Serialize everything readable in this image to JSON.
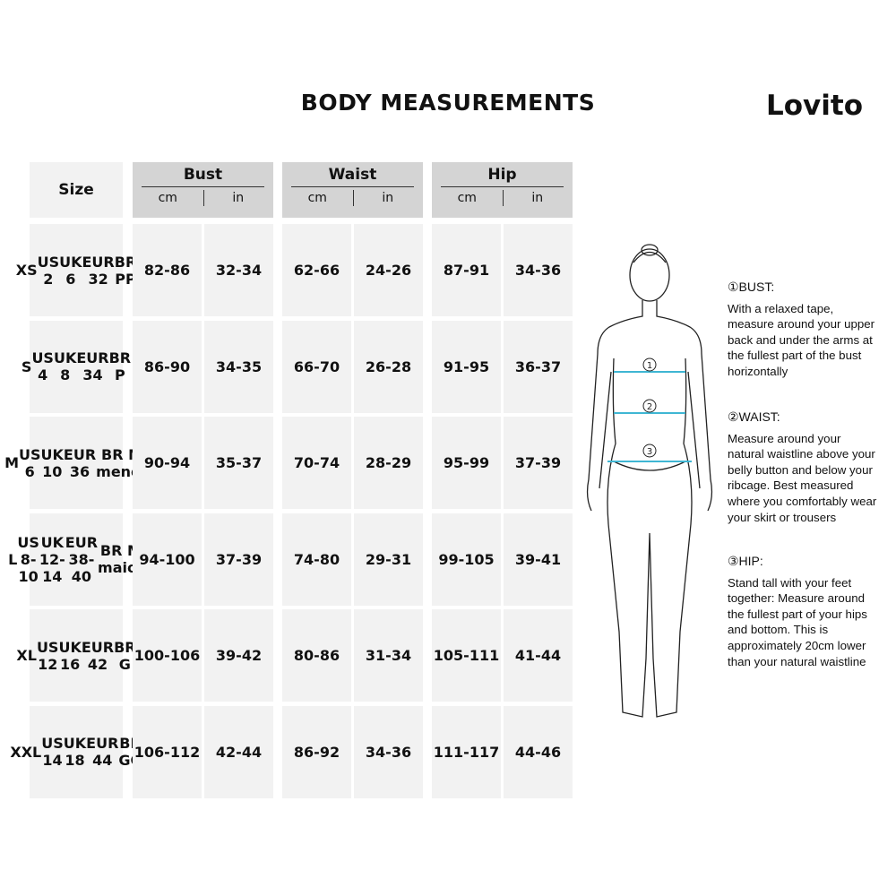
{
  "title": "BODY MEASUREMENTS",
  "brand": "Lovito",
  "header": {
    "size": "Size",
    "groups": [
      {
        "name": "Bust",
        "units": [
          "cm",
          "in"
        ]
      },
      {
        "name": "Waist",
        "units": [
          "cm",
          "in"
        ]
      },
      {
        "name": "Hip",
        "units": [
          "cm",
          "in"
        ]
      }
    ]
  },
  "rows": [
    {
      "size": [
        "XS",
        "US 2",
        "UK 6",
        "EUR 32",
        "BR PP"
      ],
      "values": [
        "82-86",
        "32-34",
        "62-66",
        "24-26",
        "87-91",
        "34-36"
      ]
    },
    {
      "size": [
        "S",
        "US 4",
        "UK 8",
        "EUR 34",
        "BR P"
      ],
      "values": [
        "86-90",
        "34-35",
        "66-70",
        "26-28",
        "91-95",
        "36-37"
      ]
    },
    {
      "size": [
        "M",
        "US 6",
        "UK 10",
        "EUR 36",
        "BR M menor"
      ],
      "values": [
        "90-94",
        "35-37",
        "70-74",
        "28-29",
        "95-99",
        "37-39"
      ]
    },
    {
      "size": [
        "L",
        "US 8-10",
        "UK 12-14",
        "EUR 38-40",
        "BR M maior"
      ],
      "values": [
        "94-100",
        "37-39",
        "74-80",
        "29-31",
        "99-105",
        "39-41"
      ]
    },
    {
      "size": [
        "XL",
        "US 12",
        "UK 16",
        "EUR 42",
        "BR G"
      ],
      "values": [
        "100-106",
        "39-42",
        "80-86",
        "31-34",
        "105-111",
        "41-44"
      ]
    },
    {
      "size": [
        "XXL",
        "US 14",
        "UK 18",
        "EUR 44",
        "BR GG"
      ],
      "values": [
        "106-112",
        "42-44",
        "86-92",
        "34-36",
        "111-117",
        "44-46"
      ]
    }
  ],
  "figure": {
    "markers": [
      "1",
      "2",
      "3"
    ],
    "tape_color": "#3fb6d3"
  },
  "guide": [
    {
      "heading": "①BUST:",
      "text": "With a relaxed tape, measure around your upper back and under the arms at the fullest part of the bust horizontally"
    },
    {
      "heading": "②WAIST:",
      "text": "Measure around your natural waistline above your belly button and below your ribcage. Best measured where you comfortably wear your skirt or trousers"
    },
    {
      "heading": "③HIP:",
      "text": "Stand tall with your feet together: Measure around the fullest part of your hips and bottom. This is approximately 20cm lower than your natural waistline"
    }
  ]
}
